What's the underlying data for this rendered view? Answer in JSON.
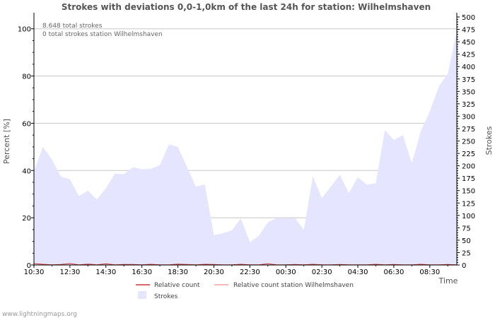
{
  "chart_data": {
    "type": "area",
    "title": "Strokes with deviations 0,0-1,0km of the last 24h for station: Wilhelmshaven",
    "ylabel_left": "Percent   [%]",
    "ylabel_right": "Strokes",
    "xlabel": "Time",
    "x_ticks": [
      "10:30",
      "12:30",
      "14:30",
      "16:30",
      "18:30",
      "20:30",
      "22:30",
      "00:30",
      "02:30",
      "04:30",
      "06:30",
      "08:30"
    ],
    "y_left_ticks": [
      0,
      20,
      40,
      60,
      80,
      100
    ],
    "y_right_ticks": [
      0,
      25,
      50,
      75,
      100,
      125,
      150,
      175,
      200,
      225,
      250,
      275,
      300,
      325,
      350,
      375,
      400,
      425,
      450,
      475,
      500
    ],
    "y_left_range": [
      0,
      105
    ],
    "y_right_range": [
      0,
      500
    ],
    "annotations": [
      "8.648 total strokes",
      "0 total strokes station Wilhelmshaven"
    ],
    "series": [
      {
        "name": "Strokes",
        "axis": "right",
        "color": "#e5e5ff",
        "values": [
          190,
          238,
          213,
          178,
          173,
          139,
          150,
          132,
          155,
          184,
          183,
          197,
          193,
          194,
          201,
          243,
          238,
          198,
          158,
          162,
          60,
          64,
          70,
          94,
          46,
          59,
          86,
          95,
          94,
          95,
          71,
          179,
          135,
          158,
          182,
          145,
          177,
          162,
          165,
          272,
          252,
          262,
          205,
          270,
          310,
          360,
          386,
          470
        ]
      },
      {
        "name": "Relative count",
        "axis": "left",
        "color": "#cc3333",
        "values": [
          0.6,
          0.3,
          0.1,
          0.2,
          0.6,
          0.1,
          0.4,
          0.1,
          0.5,
          0.1,
          0.2,
          0.2,
          0.1,
          0.3,
          0.1,
          0.1,
          0.4,
          0.2,
          0.1,
          0.3,
          0.2,
          0.1,
          0.1,
          0.3,
          0.1,
          0.1,
          0.5,
          0.1,
          0.1,
          0.2,
          0.1,
          0.3,
          0.1,
          0.1,
          0.2,
          0.1,
          0.1,
          0.1,
          0.3,
          0.1,
          0.2,
          0.1,
          0.1,
          0.3,
          0.1,
          0.1,
          0.2,
          0.1
        ]
      },
      {
        "name": "Relative count station Wilhelmshaven",
        "axis": "left",
        "color": "#f0a0a0",
        "values": [
          0,
          0,
          0,
          0,
          0,
          0,
          0,
          0,
          0,
          0,
          0,
          0,
          0,
          0,
          0,
          0,
          0,
          0,
          0,
          0,
          0,
          0,
          0,
          0,
          0,
          0,
          0,
          0,
          0,
          0,
          0,
          0,
          0,
          0,
          0,
          0,
          0,
          0,
          0,
          0,
          0,
          0,
          0,
          0,
          0,
          0,
          0,
          0
        ]
      }
    ],
    "legend": [
      {
        "label": "Relative count",
        "kind": "line",
        "color": "#cc3333"
      },
      {
        "label": "Relative count station Wilhelmshaven",
        "kind": "line",
        "color": "#f0a0a0"
      },
      {
        "label": "Strokes",
        "kind": "box",
        "color": "#e5e5ff"
      }
    ],
    "grid": true,
    "legend_position": "bottom"
  },
  "footer": "www.lightningmaps.org"
}
